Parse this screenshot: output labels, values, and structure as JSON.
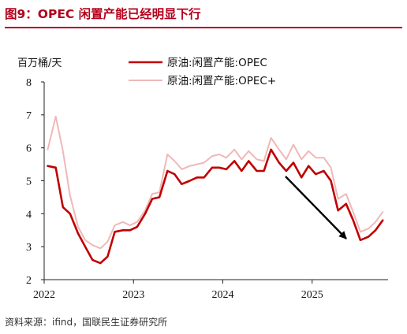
{
  "header": {
    "title": "图9：OPEC 闲置产能已经明显下行",
    "accent_color": "#b3001b"
  },
  "source": "资料来源：ifind，国联民生证券研究所",
  "chart_data": {
    "type": "line",
    "title": "",
    "unit_label": "百万桶/天",
    "xlabel": "",
    "ylabel": "百万桶/天",
    "ylim": [
      2,
      8
    ],
    "yticks": [
      "2",
      "3",
      "4",
      "5",
      "6",
      "7",
      "8"
    ],
    "xlim": [
      2022.0,
      2025.85
    ],
    "xticks": [
      "2022",
      "2023",
      "2024",
      "2025"
    ],
    "grid": false,
    "legend_position": "top",
    "annotation": "arrow-down-trend",
    "series": [
      {
        "name": "原油:闲置产能:OPEC",
        "color": "#c00000",
        "x": [
          2022.04,
          2022.13,
          2022.21,
          2022.29,
          2022.38,
          2022.46,
          2022.54,
          2022.63,
          2022.71,
          2022.79,
          2022.88,
          2022.96,
          2023.04,
          2023.13,
          2023.21,
          2023.29,
          2023.38,
          2023.46,
          2023.54,
          2023.63,
          2023.71,
          2023.79,
          2023.88,
          2023.96,
          2024.04,
          2024.13,
          2024.21,
          2024.29,
          2024.38,
          2024.46,
          2024.54,
          2024.63,
          2024.71,
          2024.79,
          2024.88,
          2024.96,
          2025.04,
          2025.13,
          2025.21,
          2025.29,
          2025.38,
          2025.46,
          2025.54,
          2025.63,
          2025.71,
          2025.79
        ],
        "values": [
          5.45,
          5.4,
          4.2,
          4.0,
          3.4,
          3.0,
          2.6,
          2.5,
          2.7,
          3.45,
          3.5,
          3.5,
          3.6,
          4.0,
          4.45,
          4.5,
          5.3,
          5.2,
          4.9,
          5.0,
          5.1,
          5.1,
          5.4,
          5.4,
          5.35,
          5.6,
          5.3,
          5.6,
          5.3,
          5.3,
          5.95,
          5.55,
          5.3,
          5.55,
          5.1,
          5.45,
          5.2,
          5.3,
          5.0,
          4.1,
          4.3,
          3.8,
          3.2,
          3.3,
          3.5,
          3.8
        ]
      },
      {
        "name": "原油:闲置产能:OPEC+",
        "color": "#efb8b8",
        "x": [
          2022.04,
          2022.13,
          2022.21,
          2022.29,
          2022.38,
          2022.46,
          2022.54,
          2022.63,
          2022.71,
          2022.79,
          2022.88,
          2022.96,
          2023.04,
          2023.13,
          2023.21,
          2023.29,
          2023.38,
          2023.46,
          2023.54,
          2023.63,
          2023.71,
          2023.79,
          2023.88,
          2023.96,
          2024.04,
          2024.13,
          2024.21,
          2024.29,
          2024.38,
          2024.46,
          2024.54,
          2024.63,
          2024.71,
          2024.79,
          2024.88,
          2024.96,
          2025.04,
          2025.13,
          2025.21,
          2025.29,
          2025.38,
          2025.46,
          2025.54,
          2025.63,
          2025.71,
          2025.79
        ],
        "values": [
          5.95,
          6.95,
          5.9,
          4.55,
          3.6,
          3.2,
          3.05,
          2.95,
          3.15,
          3.65,
          3.75,
          3.65,
          3.75,
          4.1,
          4.6,
          4.65,
          5.8,
          5.6,
          5.35,
          5.45,
          5.5,
          5.55,
          5.75,
          5.8,
          5.7,
          5.95,
          5.65,
          5.9,
          5.65,
          5.6,
          6.3,
          5.95,
          5.65,
          6.1,
          5.65,
          5.9,
          5.7,
          5.7,
          5.4,
          4.45,
          4.6,
          4.05,
          3.45,
          3.55,
          3.75,
          4.05
        ]
      }
    ]
  }
}
